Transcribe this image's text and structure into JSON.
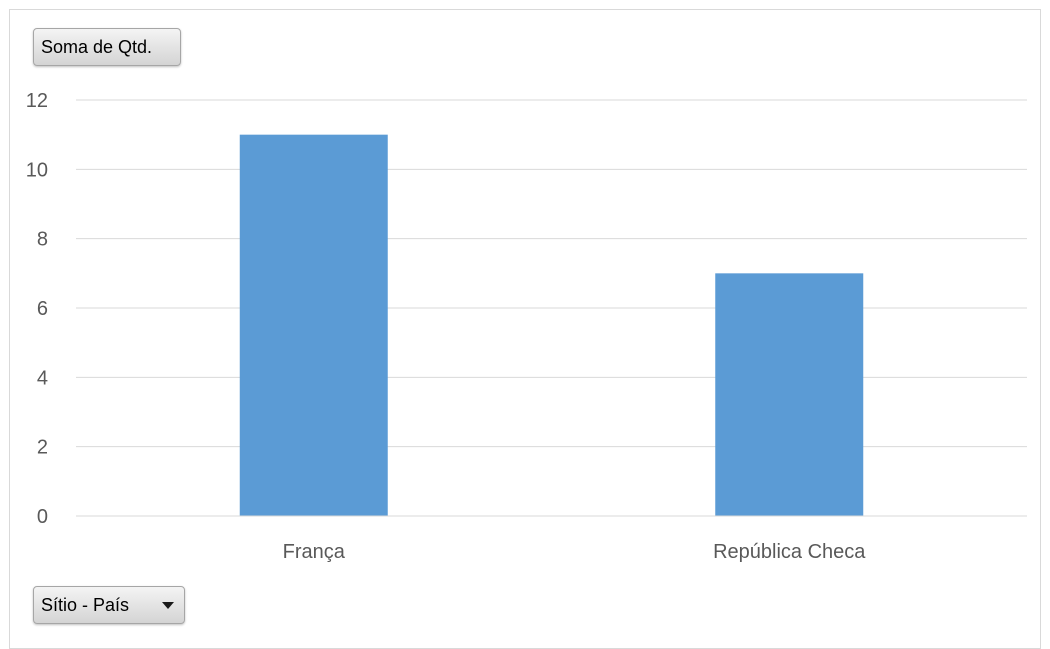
{
  "value_field_button": {
    "label": "Soma de Qtd."
  },
  "axis_field_button": {
    "label": "Sítio - País",
    "icon": "chevron-down-icon"
  },
  "chart_data": {
    "type": "bar",
    "categories": [
      "França",
      "República Checa"
    ],
    "values": [
      11,
      7
    ],
    "title": "",
    "xlabel": "",
    "ylabel": "",
    "ylim": [
      0,
      12
    ],
    "yticks": [
      "0",
      "2",
      "4",
      "6",
      "8",
      "10",
      "12"
    ],
    "grid": true,
    "legend": "none",
    "bar_color": "#5b9bd5",
    "grid_color": "#d9d9d9"
  }
}
